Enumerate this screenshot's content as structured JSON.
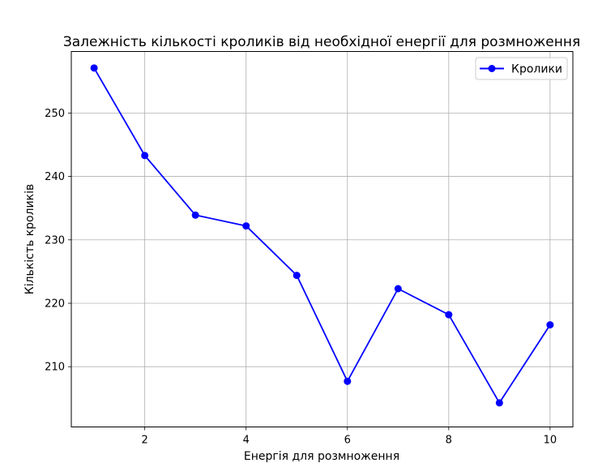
{
  "chart_data": {
    "type": "line",
    "title": "Залежність кількості кроликів від необхідної енергії для розмноження",
    "xlabel": "Енергія для розмноження",
    "ylabel": "Кількість кроликів",
    "x": [
      1,
      2,
      3,
      4,
      5,
      6,
      7,
      8,
      9,
      10
    ],
    "series": [
      {
        "name": "Кролики",
        "values": [
          257.1,
          243.3,
          233.9,
          232.2,
          224.4,
          207.7,
          222.3,
          218.2,
          204.3,
          216.6
        ],
        "color": "#0000ff",
        "marker": "circle"
      }
    ],
    "xlim": [
      0.55,
      10.45
    ],
    "ylim": [
      200.5,
      259.7
    ],
    "xticks": [
      2,
      4,
      6,
      8,
      10
    ],
    "yticks": [
      210,
      220,
      230,
      240,
      250
    ],
    "grid": true,
    "legend_position": "top-right"
  }
}
